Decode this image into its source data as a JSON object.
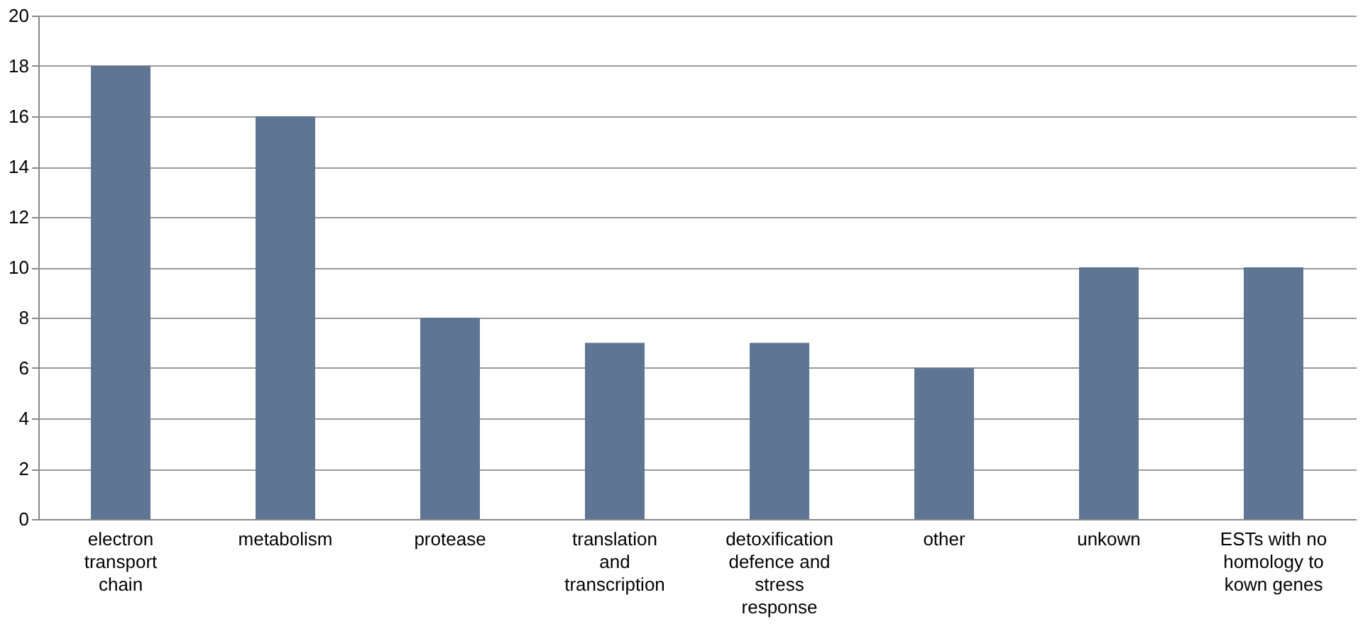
{
  "chart_data": {
    "type": "bar",
    "categories": [
      "electron\ntransport\nchain",
      "metabolism",
      "protease",
      "translation\nand\ntranscription",
      "detoxification\ndefence and\nstress\nresponse",
      "other",
      "unkown",
      "ESTs with no\nhomology to\nkown genes"
    ],
    "values": [
      18,
      16,
      8,
      7,
      7,
      6,
      10,
      10
    ],
    "color": "#5f7594",
    "ylim": [
      0,
      20
    ],
    "yticks": [
      0,
      2,
      4,
      6,
      8,
      10,
      12,
      14,
      16,
      18,
      20
    ],
    "grid": "y"
  }
}
